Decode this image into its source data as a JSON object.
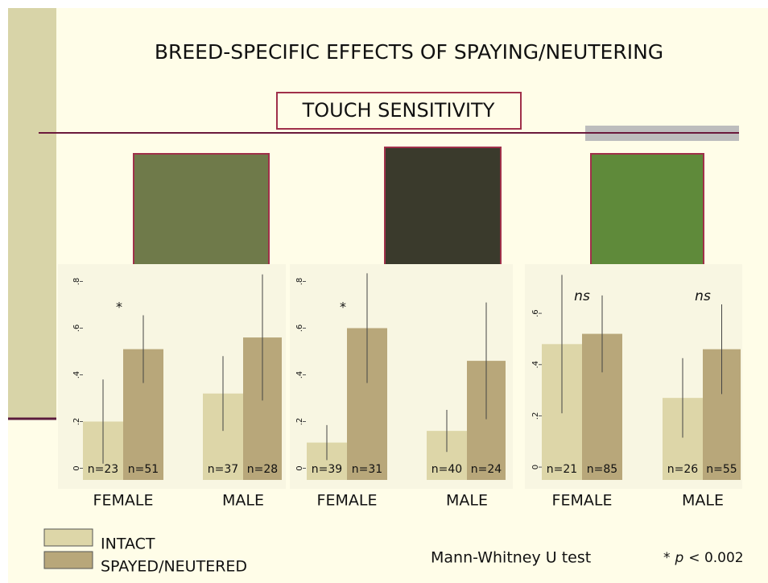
{
  "slide": {
    "title": "BREED-SPECIFIC EFFECTS OF SPAYING/NEUTERING",
    "subtitle": "TOUCH SENSITIVITY",
    "test_note": "Mann-Whitney U test",
    "p_note": [
      "*",
      "p",
      "< 0.002"
    ]
  },
  "chart_data": [
    {
      "type": "bar",
      "categories": [
        "FEMALE",
        "MALE"
      ],
      "ylim": [
        -0.05,
        0.85
      ],
      "yticks": [
        0,
        {
          "value": 0.2,
          "label": ".2"
        },
        {
          "value": 0.4,
          "label": ".4"
        },
        {
          "value": 0.6,
          "label": ".6"
        },
        {
          "value": 0.8,
          "label": ".8"
        }
      ],
      "annotations": [
        "*",
        null
      ],
      "series": [
        {
          "name": "INTACT",
          "color": "#ddd6a8",
          "values": [
            0.2,
            0.32
          ],
          "errors": [
            0.18,
            0.16
          ],
          "n_labels": [
            "n=23",
            "n=37"
          ]
        },
        {
          "name": "SPAYED/NEUTERED",
          "color": "#b8a77a",
          "values": [
            0.51,
            0.56
          ],
          "errors": [
            0.145,
            0.27
          ],
          "n_labels": [
            "n=51",
            "n=28"
          ]
        }
      ]
    },
    {
      "type": "bar",
      "categories": [
        "FEMALE",
        "MALE"
      ],
      "ylim": [
        -0.05,
        0.85
      ],
      "yticks": [
        0,
        {
          "value": 0.2,
          "label": ".2"
        },
        {
          "value": 0.4,
          "label": ".4"
        },
        {
          "value": 0.6,
          "label": ".6"
        },
        {
          "value": 0.8,
          "label": ".8"
        }
      ],
      "annotations": [
        "*",
        null
      ],
      "series": [
        {
          "name": "INTACT",
          "color": "#ddd6a8",
          "values": [
            0.11,
            0.16
          ],
          "errors": [
            0.075,
            0.09
          ],
          "n_labels": [
            "n=39",
            "n=40"
          ]
        },
        {
          "name": "SPAYED/NEUTERED",
          "color": "#b8a77a",
          "values": [
            0.6,
            0.46
          ],
          "errors": [
            0.235,
            0.25
          ],
          "n_labels": [
            "n=31",
            "n=24"
          ]
        }
      ]
    },
    {
      "type": "bar",
      "categories": [
        "FEMALE",
        "MALE"
      ],
      "ylim": [
        -0.05,
        0.77
      ],
      "yticks": [
        0,
        {
          "value": 0.2,
          "label": ".2"
        },
        {
          "value": 0.4,
          "label": ".4"
        },
        {
          "value": 0.6,
          "label": ".6"
        }
      ],
      "annotations": [
        "ns",
        "ns"
      ],
      "series": [
        {
          "name": "INTACT",
          "color": "#ddd6a8",
          "values": [
            0.48,
            0.27
          ],
          "errors": [
            0.27,
            0.155
          ],
          "n_labels": [
            "n=21",
            "n=26"
          ]
        },
        {
          "name": "SPAYED/NEUTERED",
          "color": "#b8a77a",
          "values": [
            0.52,
            0.46
          ],
          "errors": [
            0.15,
            0.175
          ],
          "n_labels": [
            "n=85",
            "n=55"
          ]
        }
      ]
    }
  ]
}
